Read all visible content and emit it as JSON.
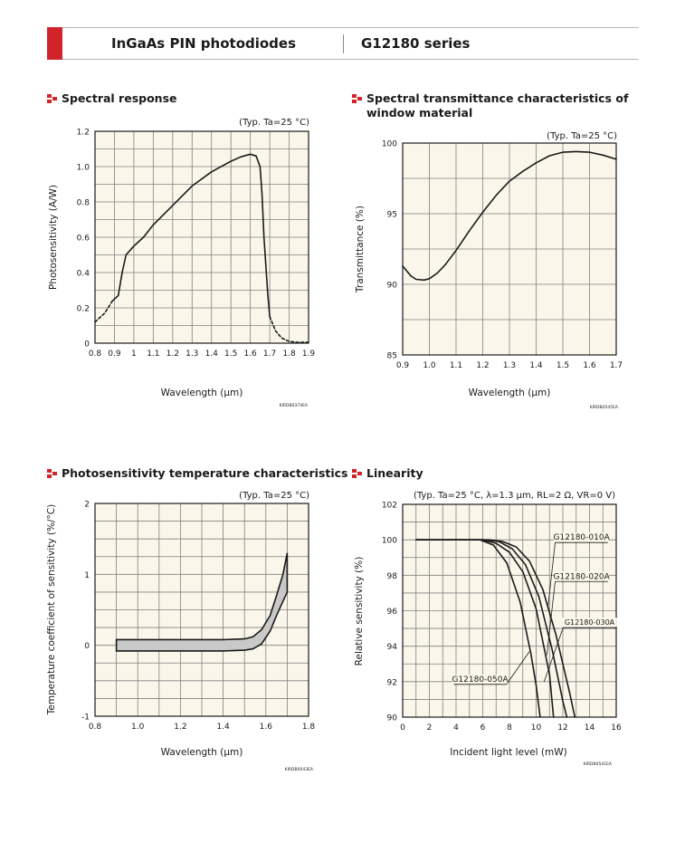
{
  "header": {
    "product": "InGaAs PIN photodiodes",
    "series": "G12180 series"
  },
  "sections": [
    {
      "title": "Spectral response"
    },
    {
      "title_lines": [
        "Spectral transmittance characteristics of",
        "window material"
      ]
    },
    {
      "title": "Photosensitivity temperature characteristics"
    },
    {
      "title": "Linearity"
    }
  ],
  "chart_data": [
    {
      "type": "line",
      "title": "Spectral response",
      "condition": "(Typ. Ta=25 °C)",
      "xlabel": "Wavelength (μm)",
      "ylabel": "Photosensitivity (A/W)",
      "code": "KIRDB0374EA",
      "xlim": [
        0.8,
        1.9
      ],
      "ylim": [
        0,
        1.2
      ],
      "xticks": [
        0.8,
        0.9,
        1,
        1.1,
        1.2,
        1.3,
        1.4,
        1.5,
        1.6,
        1.7,
        1.8,
        1.9
      ],
      "yticks": [
        0,
        0.2,
        0.4,
        0.6,
        0.8,
        1.0,
        1.2
      ],
      "xtick_labels": [
        "0.8",
        "0.9",
        "1",
        "1.1",
        "1.2",
        "1.3",
        "1.4",
        "1.5",
        "1.6",
        "1.7",
        "1.8",
        "1.9"
      ],
      "ytick_labels": [
        "0",
        "0.2",
        "0.4",
        "0.6",
        "0.8",
        "1.0",
        "1.2"
      ],
      "grid": true,
      "series": [
        {
          "style": "dashed",
          "x": [
            0.8,
            0.85,
            0.89
          ],
          "y": [
            0.12,
            0.17,
            0.24
          ]
        },
        {
          "style": "solid",
          "x": [
            0.89,
            0.9,
            0.92,
            0.94,
            0.96,
            1.0,
            1.05,
            1.1,
            1.2,
            1.3,
            1.4,
            1.5,
            1.55,
            1.6,
            1.63,
            1.65,
            1.66,
            1.67,
            1.69,
            1.7
          ],
          "y": [
            0.24,
            0.25,
            0.27,
            0.4,
            0.5,
            0.55,
            0.6,
            0.67,
            0.78,
            0.89,
            0.97,
            1.03,
            1.055,
            1.07,
            1.06,
            1.0,
            0.85,
            0.6,
            0.28,
            0.15
          ]
        },
        {
          "style": "dashed",
          "x": [
            1.7,
            1.73,
            1.76,
            1.8,
            1.84,
            1.87,
            1.9
          ],
          "y": [
            0.15,
            0.07,
            0.03,
            0.01,
            0.005,
            0.005,
            0.005
          ]
        }
      ]
    },
    {
      "type": "line",
      "title": "Spectral transmittance characteristics of window material",
      "condition": "(Typ. Ta=25 °C)",
      "xlabel": "Wavelength (μm)",
      "ylabel": "Transmittance (%)",
      "code": "KIRDB0545EA",
      "xlim": [
        0.9,
        1.7
      ],
      "ylim": [
        85,
        100
      ],
      "xticks": [
        0.9,
        1.0,
        1.1,
        1.2,
        1.3,
        1.4,
        1.5,
        1.6,
        1.7
      ],
      "yticks": [
        85,
        90,
        95,
        100
      ],
      "xtick_labels": [
        "0.9",
        "1.0",
        "1.1",
        "1.2",
        "1.3",
        "1.4",
        "1.5",
        "1.6",
        "1.7"
      ],
      "ytick_labels": [
        "85",
        "90",
        "95",
        "100"
      ],
      "grid": true,
      "series": [
        {
          "style": "solid",
          "x": [
            0.9,
            0.93,
            0.95,
            0.98,
            1.0,
            1.03,
            1.06,
            1.1,
            1.15,
            1.2,
            1.25,
            1.3,
            1.35,
            1.4,
            1.45,
            1.5,
            1.55,
            1.6,
            1.65,
            1.7
          ],
          "y": [
            91.3,
            90.6,
            90.35,
            90.3,
            90.4,
            90.8,
            91.4,
            92.4,
            93.8,
            95.1,
            96.3,
            97.3,
            98.0,
            98.6,
            99.1,
            99.35,
            99.4,
            99.35,
            99.15,
            98.85
          ]
        }
      ]
    },
    {
      "type": "area",
      "title": "Photosensitivity temperature characteristics",
      "condition": "(Typ. Ta=25 °C)",
      "xlabel": "Wavelength (μm)",
      "ylabel": "Temperature coefficient of sensitivity (%/°C)",
      "code": "KIRDB0043EA",
      "xlim": [
        0.8,
        1.8
      ],
      "ylim": [
        -1,
        2
      ],
      "xticks": [
        0.8,
        1.0,
        1.2,
        1.4,
        1.6,
        1.8
      ],
      "yticks": [
        -1,
        0,
        1,
        2
      ],
      "xtick_labels": [
        "0.8",
        "1.0",
        "1.2",
        "1.4",
        "1.6",
        "1.8"
      ],
      "ytick_labels": [
        "-1",
        "0",
        "1",
        "2"
      ],
      "grid": true,
      "band": {
        "x": [
          0.9,
          1.0,
          1.2,
          1.4,
          1.5,
          1.54,
          1.58,
          1.62,
          1.65,
          1.68,
          1.7
        ],
        "upper": [
          0.08,
          0.08,
          0.08,
          0.08,
          0.09,
          0.12,
          0.22,
          0.42,
          0.7,
          1.0,
          1.3
        ],
        "lower": [
          -0.08,
          -0.08,
          -0.08,
          -0.08,
          -0.07,
          -0.05,
          0.02,
          0.2,
          0.42,
          0.62,
          0.75
        ]
      }
    },
    {
      "type": "line",
      "title": "Linearity",
      "condition": "(Typ. Ta=25 °C, λ=1.3 μm, RL=2 Ω, VR=0 V)",
      "xlabel": "Incident light level (mW)",
      "ylabel": "Relative sensitivity (%)",
      "code": "KIRDB0541EA",
      "xlim": [
        0,
        16
      ],
      "ylim": [
        90,
        102
      ],
      "xticks": [
        0,
        2,
        4,
        6,
        8,
        10,
        12,
        14,
        16
      ],
      "yticks": [
        90,
        92,
        94,
        96,
        98,
        100,
        102
      ],
      "xtick_labels": [
        "0",
        "2",
        "4",
        "6",
        "8",
        "10",
        "12",
        "14",
        "16"
      ],
      "ytick_labels": [
        "90",
        "92",
        "94",
        "96",
        "98",
        "100",
        "102"
      ],
      "grid": true,
      "series": [
        {
          "name": "G12180-010A",
          "x": [
            1,
            5.5,
            6.5,
            7.5,
            8.5,
            9.5,
            10.5,
            11.5,
            12.5,
            12.9
          ],
          "y": [
            100,
            100,
            100,
            99.9,
            99.6,
            98.8,
            97.2,
            94.6,
            91.4,
            90
          ]
        },
        {
          "name": "G12180-020A",
          "x": [
            1,
            5.2,
            6.2,
            7.2,
            8.2,
            9.2,
            10.2,
            11.2,
            12.0,
            12.3
          ],
          "y": [
            100,
            100,
            100,
            99.9,
            99.5,
            98.6,
            96.8,
            93.8,
            90.9,
            90
          ]
        },
        {
          "name": "G12180-030A",
          "x": [
            1,
            5.0,
            6.0,
            7.0,
            8.0,
            9.0,
            10.0,
            11.0,
            11.3
          ],
          "y": [
            100,
            100,
            100,
            99.8,
            99.3,
            98.2,
            96.1,
            92.4,
            90
          ]
        },
        {
          "name": "G12180-050A",
          "x": [
            1,
            4.8,
            5.8,
            6.8,
            7.8,
            8.8,
            9.6,
            10.0,
            10.3
          ],
          "y": [
            100,
            100,
            100,
            99.7,
            98.7,
            96.5,
            93.6,
            91.8,
            90
          ]
        }
      ]
    }
  ]
}
